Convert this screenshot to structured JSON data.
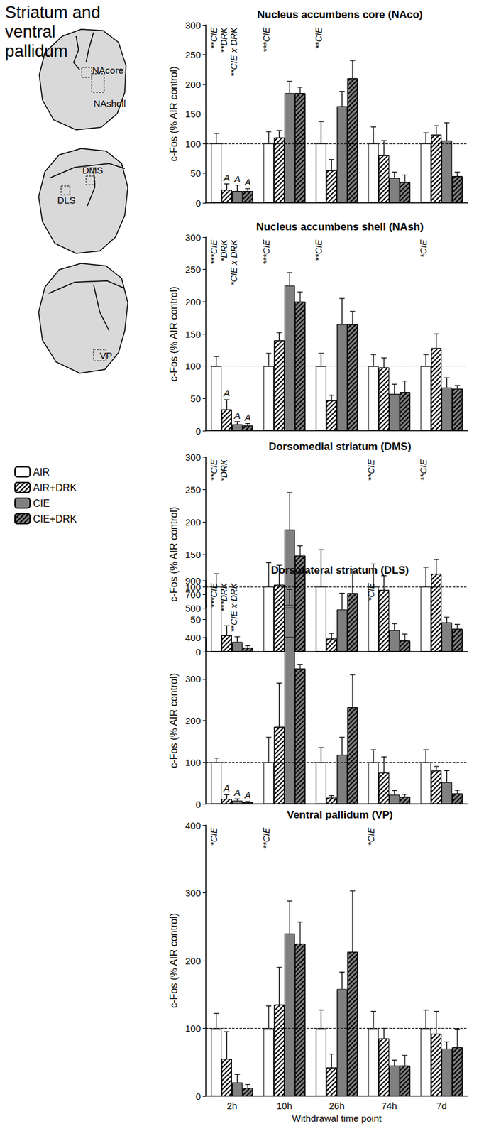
{
  "figure": {
    "title": "Striatum and ventral pallidum",
    "diagram_labels": [
      [
        "NAcore",
        "NAshell"
      ],
      [
        "DMS",
        "DLS"
      ],
      [
        "VP"
      ]
    ]
  },
  "chart_data": [
    {
      "type": "bar",
      "title": "Nucleus accumbens core (NAco)",
      "ylabel": "c-Fos (% AIR control)",
      "categories": [
        "2h",
        "10h",
        "26h",
        "74h",
        "7d"
      ],
      "ylim": [
        0,
        300
      ],
      "yticks": [
        0,
        50,
        100,
        150,
        200,
        250,
        300
      ],
      "reference_line": 100,
      "tick_labels": "y",
      "series": [
        {
          "name": "AIR",
          "color": "#ffffff",
          "marker": "solid",
          "values": [
            100,
            100,
            100,
            100,
            100
          ],
          "errors": [
            17,
            20,
            37,
            28,
            18
          ]
        },
        {
          "name": "AIR+DRK",
          "color": "#ffffff",
          "marker": "hatched",
          "values": [
            22,
            110,
            55,
            80,
            115
          ],
          "errors": [
            10,
            12,
            18,
            25,
            15
          ],
          "letters": [
            "A",
            null,
            null,
            null,
            null
          ]
        },
        {
          "name": "CIE",
          "color": "#808080",
          "marker": "solid",
          "values": [
            20,
            185,
            163,
            42,
            105
          ],
          "errors": [
            10,
            20,
            25,
            10,
            30
          ],
          "letters": [
            "A",
            null,
            null,
            null,
            null
          ]
        },
        {
          "name": "CIE+DRK",
          "color": "#808080",
          "marker": "hatched",
          "values": [
            20,
            185,
            210,
            35,
            45
          ],
          "errors": [
            4,
            10,
            30,
            12,
            7
          ],
          "letters": [
            "A",
            null,
            null,
            null,
            null
          ]
        }
      ],
      "annotations": [
        {
          "category": "2h",
          "texts": [
            "**CIE",
            "**DRK",
            "**CIE x DRK"
          ]
        },
        {
          "category": "10h",
          "texts": [
            "***CIE"
          ]
        },
        {
          "category": "26h",
          "texts": [
            "**CIE"
          ]
        }
      ]
    },
    {
      "type": "bar",
      "title": "Nucleus accumbens shell (NAsh)",
      "ylabel": "c-Fos (% AIR control)",
      "categories": [
        "2h",
        "10h",
        "26h",
        "74h",
        "7d"
      ],
      "ylim": [
        0,
        300
      ],
      "yticks": [
        0,
        50,
        100,
        150,
        200,
        250,
        300
      ],
      "reference_line": 100,
      "tick_labels": "y",
      "series": [
        {
          "name": "AIR",
          "color": "#ffffff",
          "marker": "solid",
          "values": [
            100,
            100,
            100,
            100,
            100
          ],
          "errors": [
            15,
            20,
            20,
            18,
            18
          ]
        },
        {
          "name": "AIR+DRK",
          "color": "#ffffff",
          "marker": "hatched",
          "values": [
            33,
            140,
            47,
            98,
            128
          ],
          "errors": [
            15,
            12,
            8,
            15,
            22
          ],
          "letters": [
            "A",
            null,
            null,
            null,
            null
          ]
        },
        {
          "name": "CIE",
          "color": "#808080",
          "marker": "solid",
          "values": [
            10,
            225,
            165,
            57,
            67
          ],
          "errors": [
            4,
            20,
            40,
            15,
            15
          ],
          "letters": [
            "A",
            null,
            null,
            null,
            null
          ]
        },
        {
          "name": "CIE+DRK",
          "color": "#808080",
          "marker": "hatched",
          "values": [
            8,
            200,
            165,
            60,
            65
          ],
          "errors": [
            3,
            15,
            20,
            17,
            5
          ],
          "letters": [
            "A",
            null,
            null,
            null,
            null
          ]
        }
      ],
      "annotations": [
        {
          "category": "2h",
          "texts": [
            "***CIE",
            "*DRK",
            "*CIE x DRK"
          ]
        },
        {
          "category": "10h",
          "texts": [
            "***CIE"
          ]
        },
        {
          "category": "26h",
          "texts": [
            "**CIE"
          ]
        },
        {
          "category": "7d",
          "texts": [
            "*CIE"
          ]
        }
      ]
    },
    {
      "type": "bar",
      "title": "Dorsomedial striatum (DMS)",
      "ylabel": "c-Fos (% AIR control)",
      "categories": [
        "2h",
        "10h",
        "26h",
        "74h",
        "7d"
      ],
      "ylim": [
        0,
        300
      ],
      "yticks": [
        0,
        50,
        100,
        150,
        200,
        250,
        300
      ],
      "reference_line": 100,
      "tick_labels": "y",
      "series": [
        {
          "name": "AIR",
          "color": "#ffffff",
          "marker": "solid",
          "values": [
            100,
            100,
            100,
            100,
            100
          ],
          "errors": [
            20,
            37,
            57,
            35,
            30
          ]
        },
        {
          "name": "AIR+DRK",
          "color": "#ffffff",
          "marker": "hatched",
          "values": [
            25,
            103,
            20,
            95,
            120
          ],
          "errors": [
            15,
            30,
            8,
            22,
            22
          ]
        },
        {
          "name": "CIE",
          "color": "#808080",
          "marker": "solid",
          "values": [
            15,
            188,
            65,
            33,
            45
          ],
          "errors": [
            8,
            57,
            25,
            10,
            8
          ]
        },
        {
          "name": "CIE+DRK",
          "color": "#808080",
          "marker": "hatched",
          "values": [
            6,
            148,
            90,
            17,
            35
          ],
          "errors": [
            3,
            15,
            37,
            10,
            7
          ]
        }
      ],
      "annotations": [
        {
          "category": "2h",
          "texts": [
            "**CIE",
            "*DRK"
          ]
        },
        {
          "category": "74h",
          "texts": [
            "**CIE"
          ]
        },
        {
          "category": "7d",
          "texts": [
            "**CIE"
          ]
        }
      ]
    },
    {
      "type": "bar",
      "title": "Dorsolateral striatum (DLS)",
      "ylabel": "c-Fos (% AIR control)",
      "categories": [
        "2h",
        "10h",
        "26h",
        "74h",
        "7d"
      ],
      "ylim": [
        0,
        900
      ],
      "yticks": [
        0,
        100,
        200,
        300,
        400,
        500,
        700,
        900
      ],
      "axis_break": [
        400,
        500
      ],
      "reference_line": 100,
      "tick_labels": "y",
      "series": [
        {
          "name": "AIR",
          "color": "#ffffff",
          "marker": "solid",
          "values": [
            100,
            100,
            100,
            100,
            100
          ],
          "errors": [
            10,
            60,
            35,
            30,
            30
          ]
        },
        {
          "name": "AIR+DRK",
          "color": "#ffffff",
          "marker": "hatched",
          "values": [
            12,
            185,
            15,
            75,
            80
          ],
          "errors": [
            10,
            105,
            5,
            38,
            10
          ],
          "letters": [
            "A",
            null,
            null,
            null,
            null
          ]
        },
        {
          "name": "CIE",
          "color": "#808080",
          "marker": "solid",
          "values": [
            8,
            540,
            118,
            22,
            52
          ],
          "errors": [
            4,
            230,
            42,
            10,
            28
          ],
          "letters": [
            "A",
            null,
            null,
            null,
            null
          ]
        },
        {
          "name": "CIE+DRK",
          "color": "#808080",
          "marker": "hatched",
          "values": [
            4,
            325,
            232,
            17,
            25
          ],
          "errors": [
            2,
            10,
            78,
            6,
            8
          ],
          "letters": [
            "A",
            null,
            null,
            null,
            null
          ]
        }
      ],
      "annotations": [
        {
          "category": "2h",
          "texts": [
            "***CIE",
            "***DRK",
            "**CIE x DRK"
          ]
        },
        {
          "category": "74h",
          "texts": [
            "*CIE"
          ]
        }
      ]
    },
    {
      "type": "bar",
      "title": "Ventral pallidum (VP)",
      "ylabel": "c-Fos (% AIR control)",
      "xlabel": "Withdrawal time point",
      "categories": [
        "2h",
        "10h",
        "26h",
        "74h",
        "7d"
      ],
      "ylim": [
        0,
        400
      ],
      "yticks": [
        0,
        100,
        200,
        300,
        400
      ],
      "reference_line": 100,
      "series": [
        {
          "name": "AIR",
          "color": "#ffffff",
          "marker": "solid",
          "values": [
            100,
            100,
            100,
            100,
            100
          ],
          "errors": [
            22,
            33,
            27,
            25,
            27
          ]
        },
        {
          "name": "AIR+DRK",
          "color": "#ffffff",
          "marker": "hatched",
          "values": [
            55,
            135,
            42,
            85,
            92
          ],
          "errors": [
            40,
            55,
            20,
            15,
            33
          ]
        },
        {
          "name": "CIE",
          "color": "#808080",
          "marker": "solid",
          "values": [
            20,
            240,
            158,
            45,
            70
          ],
          "errors": [
            12,
            48,
            25,
            8,
            10
          ]
        },
        {
          "name": "CIE+DRK",
          "color": "#808080",
          "marker": "hatched",
          "values": [
            12,
            225,
            213,
            45,
            72
          ],
          "errors": [
            5,
            32,
            90,
            15,
            27
          ]
        }
      ],
      "annotations": [
        {
          "category": "2h",
          "texts": [
            "*CIE"
          ]
        },
        {
          "category": "10h",
          "texts": [
            "**CIE"
          ]
        },
        {
          "category": "74h",
          "texts": [
            "*CIE"
          ]
        }
      ]
    }
  ]
}
